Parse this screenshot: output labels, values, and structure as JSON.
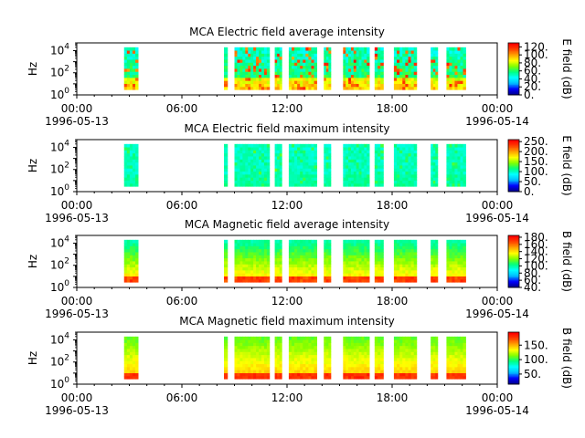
{
  "figure": {
    "background": "#ffffff",
    "colormap": [
      "#00008b",
      "#0000ff",
      "#00bfff",
      "#00ffff",
      "#00ff80",
      "#80ff00",
      "#ffff00",
      "#ffa500",
      "#ff4500",
      "#ff0000"
    ]
  },
  "chart_data": [
    {
      "type": "heatmap",
      "title": "MCA  Electric field average intensity",
      "ylabel": "Hz",
      "yscale": "log",
      "ylim": [
        1,
        50000
      ],
      "ytick_labels": [
        "10^0",
        "10^2",
        "10^4"
      ],
      "xlim": [
        "1996-05-13 00:00",
        "1996-05-14 00:00"
      ],
      "xtick_labels": [
        {
          "time": "00:00",
          "date": "1996-05-13"
        },
        {
          "time": "06:00",
          "date": ""
        },
        {
          "time": "12:00",
          "date": ""
        },
        {
          "time": "18:00",
          "date": ""
        },
        {
          "time": "00:00",
          "date": "1996-05-14"
        }
      ],
      "colorbar": {
        "label": "E field (dB)",
        "range": [
          0,
          130
        ],
        "tick_labels": [
          "0.",
          "20.",
          "40.",
          "60.",
          "80.",
          "100.",
          "120."
        ]
      },
      "data_intervals_hours": [
        [
          2.7,
          3.5
        ],
        [
          8.4,
          8.6
        ],
        [
          9.0,
          11.0
        ],
        [
          11.3,
          11.7
        ],
        [
          12.1,
          13.7
        ],
        [
          14.1,
          14.5
        ],
        [
          15.2,
          16.7
        ],
        [
          17.0,
          17.5
        ],
        [
          18.1,
          19.4
        ],
        [
          20.2,
          20.6
        ],
        [
          21.1,
          22.2
        ]
      ],
      "frequency_range_hz": [
        3,
        20000
      ],
      "intensity_dB": {
        "background": 50,
        "low_freq": 95,
        "peak": 120
      }
    },
    {
      "type": "heatmap",
      "title": "MCA  Electric field maximum intensity",
      "ylabel": "Hz",
      "yscale": "log",
      "ylim": [
        1,
        50000
      ],
      "ytick_labels": [
        "10^0",
        "10^2",
        "10^4"
      ],
      "xlim": [
        "1996-05-13 00:00",
        "1996-05-14 00:00"
      ],
      "xtick_labels": [
        {
          "time": "00:00",
          "date": "1996-05-13"
        },
        {
          "time": "06:00",
          "date": ""
        },
        {
          "time": "12:00",
          "date": ""
        },
        {
          "time": "18:00",
          "date": ""
        },
        {
          "time": "00:00",
          "date": "1996-05-14"
        }
      ],
      "colorbar": {
        "label": "E field (dB)",
        "range": [
          0,
          260
        ],
        "tick_labels": [
          "0.",
          "50.",
          "100.",
          "150.",
          "200.",
          "250."
        ]
      },
      "data_intervals_hours": [
        [
          2.7,
          3.5
        ],
        [
          8.4,
          8.6
        ],
        [
          9.0,
          11.0
        ],
        [
          11.3,
          11.7
        ],
        [
          12.1,
          13.7
        ],
        [
          14.1,
          14.5
        ],
        [
          15.2,
          16.7
        ],
        [
          17.0,
          17.5
        ],
        [
          18.1,
          19.4
        ],
        [
          20.2,
          20.6
        ],
        [
          21.1,
          22.2
        ]
      ],
      "frequency_range_hz": [
        3,
        20000
      ],
      "intensity_dB": {
        "background": 100,
        "low_freq": 110,
        "peak": 130
      }
    },
    {
      "type": "heatmap",
      "title": "MCA  Magnetic field average intensity",
      "ylabel": "Hz",
      "yscale": "log",
      "ylim": [
        1,
        50000
      ],
      "ytick_labels": [
        "10^0",
        "10^2",
        "10^4"
      ],
      "xlim": [
        "1996-05-13 00:00",
        "1996-05-14 00:00"
      ],
      "xtick_labels": [
        {
          "time": "00:00",
          "date": "1996-05-13"
        },
        {
          "time": "06:00",
          "date": ""
        },
        {
          "time": "12:00",
          "date": ""
        },
        {
          "time": "18:00",
          "date": ""
        },
        {
          "time": "00:00",
          "date": "1996-05-14"
        }
      ],
      "colorbar": {
        "label": "B field (dB)",
        "range": [
          40,
          185
        ],
        "tick_labels": [
          "40.",
          "60.",
          "80.",
          "100.",
          "120.",
          "140.",
          "160.",
          "180."
        ]
      },
      "data_intervals_hours": [
        [
          2.7,
          3.5
        ],
        [
          8.4,
          8.6
        ],
        [
          9.0,
          11.0
        ],
        [
          11.3,
          11.7
        ],
        [
          12.1,
          13.7
        ],
        [
          14.1,
          14.5
        ],
        [
          15.2,
          16.7
        ],
        [
          17.0,
          17.5
        ],
        [
          18.1,
          19.4
        ],
        [
          20.2,
          20.6
        ],
        [
          21.1,
          22.2
        ]
      ],
      "frequency_range_hz": [
        3,
        20000
      ],
      "intensity_dB": {
        "high_freq": 100,
        "low_freq": 145,
        "peak": 175
      }
    },
    {
      "type": "heatmap",
      "title": "MCA  Magnetic field maximum intensity",
      "ylabel": "Hz",
      "yscale": "log",
      "ylim": [
        1,
        50000
      ],
      "ytick_labels": [
        "10^0",
        "10^2",
        "10^4"
      ],
      "xlim": [
        "1996-05-13 00:00",
        "1996-05-14 00:00"
      ],
      "xtick_labels": [
        {
          "time": "00:00",
          "date": "1996-05-13"
        },
        {
          "time": "06:00",
          "date": ""
        },
        {
          "time": "12:00",
          "date": ""
        },
        {
          "time": "18:00",
          "date": ""
        },
        {
          "time": "00:00",
          "date": "1996-05-14"
        }
      ],
      "colorbar": {
        "label": "B field (dB)",
        "range": [
          15,
          195
        ],
        "tick_labels": [
          "50.",
          "100.",
          "150."
        ]
      },
      "data_intervals_hours": [
        [
          2.7,
          3.5
        ],
        [
          8.4,
          8.6
        ],
        [
          9.0,
          11.0
        ],
        [
          11.3,
          11.7
        ],
        [
          12.1,
          13.7
        ],
        [
          14.1,
          14.5
        ],
        [
          15.2,
          16.7
        ],
        [
          17.0,
          17.5
        ],
        [
          18.1,
          19.4
        ],
        [
          20.2,
          20.6
        ],
        [
          21.1,
          22.2
        ]
      ],
      "frequency_range_hz": [
        3,
        20000
      ],
      "intensity_dB": {
        "high_freq": 110,
        "low_freq": 150,
        "peak": 185
      }
    }
  ]
}
